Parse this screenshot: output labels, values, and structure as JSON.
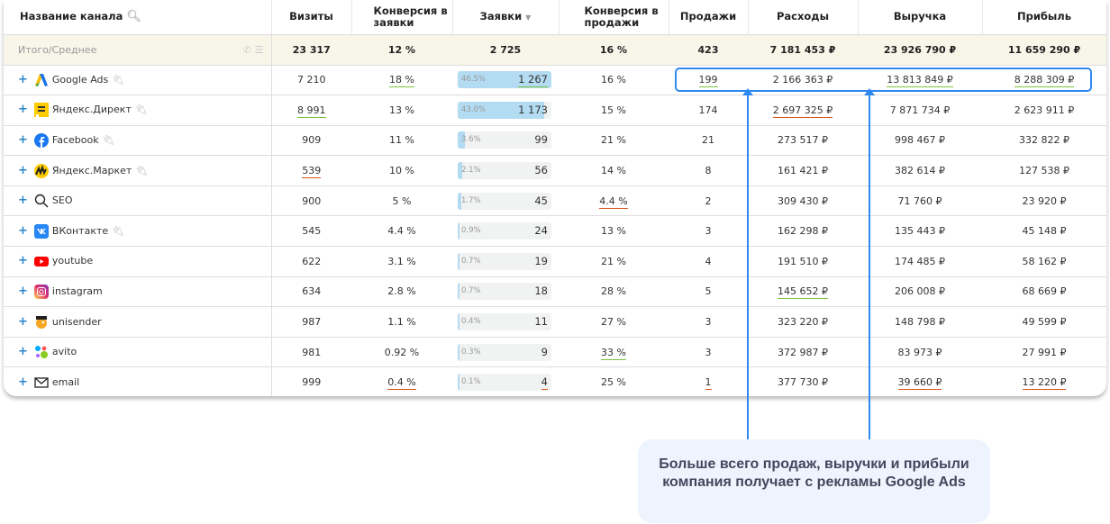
{
  "headers": {
    "name": "Название канала",
    "visits": "Визиты",
    "conv_leads": "Конверсия в заявки",
    "leads": "Заявки",
    "conv_sales": "Конверсия в продажи",
    "sales": "Продажи",
    "expenses": "Расходы",
    "revenue": "Выручка",
    "profit": "Прибыль"
  },
  "total": {
    "label": "Итого/Среднее",
    "visits": "23 317",
    "conv_leads": "12 %",
    "leads": "2 725",
    "conv_sales": "16 %",
    "sales": "423",
    "expenses": "7 181 453 ₽",
    "revenue": "23 926 790 ₽",
    "profit": "11 659 290 ₽"
  },
  "colors": {
    "good": "#7cc242",
    "bad": "#d9541e",
    "accent": "#2f88f0"
  },
  "rows": [
    {
      "name": "Google Ads",
      "icon": "google-ads-icon",
      "plug": true,
      "visits": [
        "7 210",
        ""
      ],
      "conv_leads": [
        "18 %",
        "g"
      ],
      "leads": [
        "1 267",
        "g"
      ],
      "share": 46.5,
      "share_label": "46.5%",
      "conv_sales": [
        "16 %",
        ""
      ],
      "sales": [
        "199",
        "g"
      ],
      "expenses": [
        "2 166 363 ₽",
        ""
      ],
      "revenue": [
        "13 813 849 ₽",
        "g"
      ],
      "profit": [
        "8 288 309 ₽",
        "g"
      ]
    },
    {
      "name": "Яндекс.Директ",
      "icon": "yandex-direct-icon",
      "plug": true,
      "visits": [
        "8 991",
        "g"
      ],
      "conv_leads": [
        "13 %",
        ""
      ],
      "leads": [
        "1 173",
        ""
      ],
      "share": 43.0,
      "share_label": "43.0%",
      "conv_sales": [
        "15 %",
        ""
      ],
      "sales": [
        "174",
        ""
      ],
      "expenses": [
        "2 697 325 ₽",
        "r"
      ],
      "revenue": [
        "7 871 734 ₽",
        ""
      ],
      "profit": [
        "2 623 911 ₽",
        ""
      ]
    },
    {
      "name": "Facebook",
      "icon": "facebook-icon",
      "plug": true,
      "visits": [
        "909",
        ""
      ],
      "conv_leads": [
        "11 %",
        ""
      ],
      "leads": [
        "99",
        ""
      ],
      "share": 3.6,
      "share_label": "3.6%",
      "conv_sales": [
        "21 %",
        ""
      ],
      "sales": [
        "21",
        ""
      ],
      "expenses": [
        "273 517 ₽",
        ""
      ],
      "revenue": [
        "998 467 ₽",
        ""
      ],
      "profit": [
        "332 822 ₽",
        ""
      ]
    },
    {
      "name": "Яндекс.Маркет",
      "icon": "yandex-market-icon",
      "plug": true,
      "visits": [
        "539",
        "r"
      ],
      "conv_leads": [
        "10 %",
        ""
      ],
      "leads": [
        "56",
        ""
      ],
      "share": 2.1,
      "share_label": "2.1%",
      "conv_sales": [
        "14 %",
        ""
      ],
      "sales": [
        "8",
        ""
      ],
      "expenses": [
        "161 421 ₽",
        ""
      ],
      "revenue": [
        "382 614 ₽",
        ""
      ],
      "profit": [
        "127 538 ₽",
        ""
      ]
    },
    {
      "name": "SEO",
      "icon": "search-icon",
      "plug": false,
      "visits": [
        "900",
        ""
      ],
      "conv_leads": [
        "5 %",
        ""
      ],
      "leads": [
        "45",
        ""
      ],
      "share": 1.7,
      "share_label": "1.7%",
      "conv_sales": [
        "4.4 %",
        "r"
      ],
      "sales": [
        "2",
        ""
      ],
      "expenses": [
        "309 430 ₽",
        ""
      ],
      "revenue": [
        "71 760 ₽",
        ""
      ],
      "profit": [
        "23 920 ₽",
        ""
      ]
    },
    {
      "name": "ВКонтакте",
      "icon": "vk-icon",
      "plug": true,
      "visits": [
        "545",
        ""
      ],
      "conv_leads": [
        "4.4 %",
        ""
      ],
      "leads": [
        "24",
        ""
      ],
      "share": 0.9,
      "share_label": "0.9%",
      "conv_sales": [
        "13 %",
        ""
      ],
      "sales": [
        "3",
        ""
      ],
      "expenses": [
        "162 298 ₽",
        ""
      ],
      "revenue": [
        "135 443 ₽",
        ""
      ],
      "profit": [
        "45 148 ₽",
        ""
      ]
    },
    {
      "name": "youtube",
      "icon": "youtube-icon",
      "plug": false,
      "visits": [
        "622",
        ""
      ],
      "conv_leads": [
        "3.1 %",
        ""
      ],
      "leads": [
        "19",
        ""
      ],
      "share": 0.7,
      "share_label": "0.7%",
      "conv_sales": [
        "21 %",
        ""
      ],
      "sales": [
        "4",
        ""
      ],
      "expenses": [
        "191 510 ₽",
        ""
      ],
      "revenue": [
        "174 485 ₽",
        ""
      ],
      "profit": [
        "58 162 ₽",
        ""
      ]
    },
    {
      "name": "instagram",
      "icon": "instagram-icon",
      "plug": false,
      "visits": [
        "634",
        ""
      ],
      "conv_leads": [
        "2.8 %",
        ""
      ],
      "leads": [
        "18",
        ""
      ],
      "share": 0.7,
      "share_label": "0.7%",
      "conv_sales": [
        "28 %",
        ""
      ],
      "sales": [
        "5",
        ""
      ],
      "expenses": [
        "145 652 ₽",
        "g"
      ],
      "revenue": [
        "206 008 ₽",
        ""
      ],
      "profit": [
        "68 669 ₽",
        ""
      ]
    },
    {
      "name": "unisender",
      "icon": "unisender-icon",
      "plug": false,
      "visits": [
        "987",
        ""
      ],
      "conv_leads": [
        "1.1 %",
        ""
      ],
      "leads": [
        "11",
        ""
      ],
      "share": 0.4,
      "share_label": "0.4%",
      "conv_sales": [
        "27 %",
        ""
      ],
      "sales": [
        "3",
        ""
      ],
      "expenses": [
        "323 220 ₽",
        ""
      ],
      "revenue": [
        "148 798 ₽",
        ""
      ],
      "profit": [
        "49 599 ₽",
        ""
      ]
    },
    {
      "name": "avito",
      "icon": "avito-icon",
      "plug": false,
      "visits": [
        "981",
        ""
      ],
      "conv_leads": [
        "0.92 %",
        ""
      ],
      "leads": [
        "9",
        ""
      ],
      "share": 0.3,
      "share_label": "0.3%",
      "conv_sales": [
        "33 %",
        "g"
      ],
      "sales": [
        "3",
        ""
      ],
      "expenses": [
        "372 987 ₽",
        ""
      ],
      "revenue": [
        "83 973 ₽",
        ""
      ],
      "profit": [
        "27 991 ₽",
        ""
      ]
    },
    {
      "name": "email",
      "icon": "email-icon",
      "plug": false,
      "visits": [
        "999",
        ""
      ],
      "conv_leads": [
        "0.4 %",
        "r"
      ],
      "leads": [
        "4",
        "r"
      ],
      "share": 0.1,
      "share_label": "0.1%",
      "conv_sales": [
        "25 %",
        ""
      ],
      "sales": [
        "1",
        "r"
      ],
      "expenses": [
        "377 730 ₽",
        ""
      ],
      "revenue": [
        "39 660 ₽",
        "r"
      ],
      "profit": [
        "13 220 ₽",
        "r"
      ]
    }
  ],
  "callout": "Больше всего продаж, выручки и прибыли компания получает с рекламы Google Ads"
}
